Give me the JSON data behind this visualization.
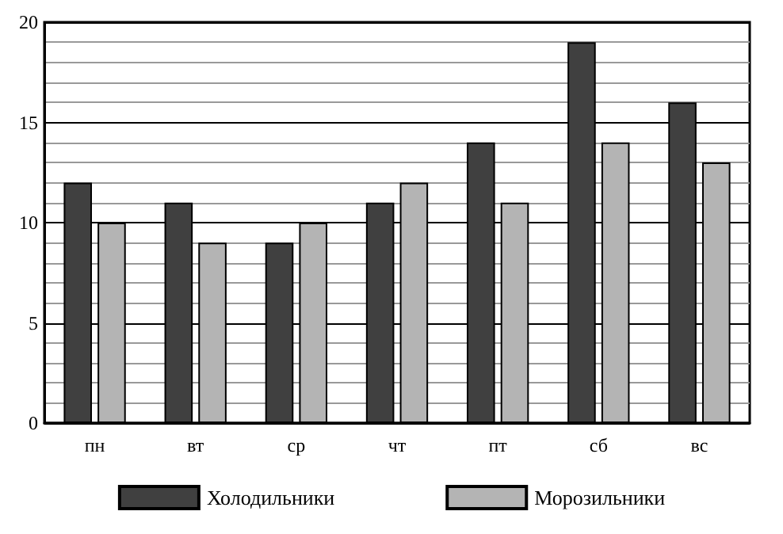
{
  "chart_data": {
    "type": "bar",
    "categories": [
      "пн",
      "вт",
      "ср",
      "чт",
      "пт",
      "сб",
      "вс"
    ],
    "series": [
      {
        "name": "Холодильники",
        "color": "#404040",
        "values": [
          12,
          11,
          9,
          11,
          14,
          19,
          16
        ]
      },
      {
        "name": "Морозильники",
        "color": "#b4b4b4",
        "values": [
          10,
          9,
          10,
          12,
          11,
          14,
          13
        ]
      }
    ],
    "ylim": [
      0,
      20
    ],
    "yticks": [
      0,
      {
        "value": 1,
        "label": null
      },
      {
        "value": 2,
        "label": null
      },
      {
        "value": 3,
        "label": null
      },
      {
        "value": 4,
        "label": null
      },
      5,
      {
        "value": 6,
        "label": null
      },
      {
        "value": 7,
        "label": null
      },
      {
        "value": 8,
        "label": null
      },
      {
        "value": 9,
        "label": null
      },
      10,
      {
        "value": 11,
        "label": null
      },
      {
        "value": 12,
        "label": null
      },
      {
        "value": 13,
        "label": null
      },
      {
        "value": 14,
        "label": null
      },
      15,
      {
        "value": 16,
        "label": null
      },
      {
        "value": 17,
        "label": null
      },
      {
        "value": 18,
        "label": null
      },
      {
        "value": 19,
        "label": null
      },
      20
    ],
    "grid": true,
    "legend": "bottom"
  }
}
